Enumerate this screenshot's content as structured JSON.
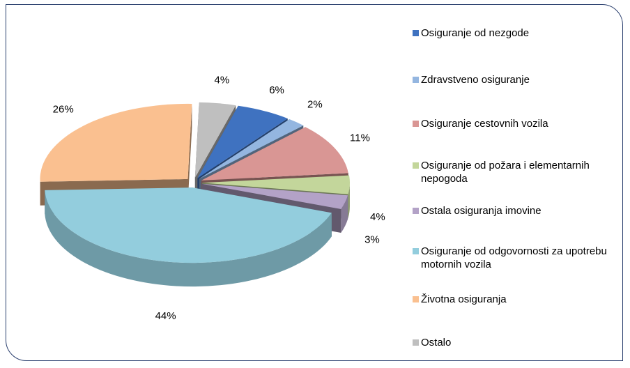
{
  "chart_data": {
    "type": "pie",
    "series": [
      {
        "name": "Osiguranje od nezgode",
        "color": "#3f72c0",
        "values": [
          6
        ],
        "value_labels": [
          "6%"
        ]
      },
      {
        "name": "Zdravstveno osiguranje",
        "color": "#94b6e0",
        "values": [
          2
        ],
        "value_labels": [
          "2%"
        ]
      },
      {
        "name": "Osiguranje cestovnih vozila",
        "color": "#d99694",
        "values": [
          11
        ],
        "value_labels": [
          "11%"
        ]
      },
      {
        "name": "Osiguranje od požara i elementarnih nepogoda",
        "color": "#c3d69b",
        "values": [
          4
        ],
        "value_labels": [
          "4%"
        ]
      },
      {
        "name": "Ostala osiguranja imovine",
        "color": "#b3a2c7",
        "values": [
          3
        ],
        "value_labels": [
          "3%"
        ]
      },
      {
        "name": "Osiguranje od odgovornosti za upotrebu motornih vozila",
        "color": "#93cddd",
        "values": [
          44
        ],
        "value_labels": [
          "44%"
        ]
      },
      {
        "name": "Životna osiguranja",
        "color": "#fac090",
        "values": [
          26
        ],
        "value_labels": [
          "26%"
        ]
      },
      {
        "name": "Ostalo",
        "color": "#bfbfbf",
        "values": [
          4
        ],
        "value_labels": [
          "4%"
        ]
      }
    ],
    "legend": "right"
  }
}
